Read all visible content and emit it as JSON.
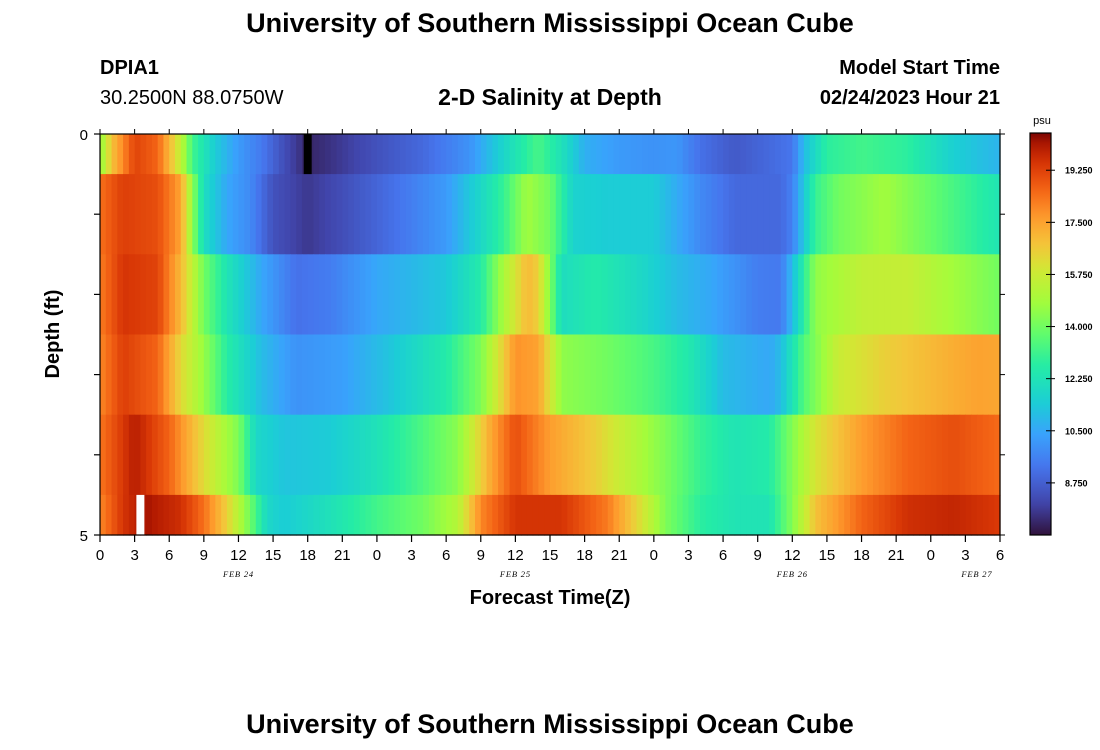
{
  "page": {
    "title": "University of Southern Mississippi Ocean Cube",
    "title_bottom": "University of Southern Mississippi Ocean Cube",
    "station": {
      "id": "DPIA1",
      "coords": "30.2500N  88.0750W"
    },
    "plot_title": "2-D Salinity at Depth",
    "model": {
      "label": "Model Start Time",
      "value": "02/24/2023 Hour 21"
    }
  },
  "chart_data": {
    "type": "heatmap",
    "title": "2-D Salinity at Depth",
    "xlabel": "Forecast Time(Z)",
    "ylabel": "Depth (ft)",
    "x_tick_labels": [
      "0",
      "3",
      "6",
      "9",
      "12",
      "15",
      "18",
      "21",
      "0",
      "3",
      "6",
      "9",
      "12",
      "15",
      "18",
      "21",
      "0",
      "3",
      "6",
      "9",
      "12",
      "15",
      "18",
      "21",
      "0",
      "3",
      "6"
    ],
    "x_range_hours": [
      0,
      78
    ],
    "day_labels": [
      {
        "label": "FEB 24",
        "hour": 12
      },
      {
        "label": "FEB 25",
        "hour": 36
      },
      {
        "label": "FEB 26",
        "hour": 60
      },
      {
        "label": "FEB 27",
        "hour": 76
      }
    ],
    "y_tick_labels": [
      "0",
      "5"
    ],
    "y_range_ft": [
      0,
      5
    ],
    "depth_layers": 5,
    "colorbar": {
      "unit": "psu",
      "range": [
        7.0,
        20.5
      ],
      "tick_values": [
        8.75,
        10.5,
        12.25,
        14.0,
        15.75,
        17.5,
        19.25
      ],
      "tick_labels": [
        "8.750",
        "10.500",
        "12.250",
        "14.000",
        "15.750",
        "17.500",
        "19.250"
      ]
    },
    "rows": [
      {
        "depth_range": [
          0,
          0.5
        ],
        "knots": [
          [
            0,
            14.5
          ],
          [
            1,
            16.8
          ],
          [
            3,
            19.2
          ],
          [
            5,
            18.6
          ],
          [
            7,
            15.5
          ],
          [
            8,
            13.2
          ],
          [
            10,
            11.4
          ],
          [
            12,
            10.2
          ],
          [
            14,
            9.4
          ],
          [
            16,
            8.3
          ],
          [
            18,
            7.4
          ],
          [
            20,
            7.7
          ],
          [
            24,
            8.4
          ],
          [
            28,
            9.0
          ],
          [
            32,
            10.0
          ],
          [
            36,
            12.3
          ],
          [
            38,
            13.3
          ],
          [
            40,
            12.2
          ],
          [
            42,
            10.7
          ],
          [
            45,
            10.2
          ],
          [
            48,
            10.0
          ],
          [
            50,
            10.1
          ],
          [
            52,
            9.2
          ],
          [
            55,
            8.6
          ],
          [
            58,
            9.0
          ],
          [
            60,
            9.3
          ],
          [
            61,
            11.0
          ],
          [
            63,
            12.8
          ],
          [
            66,
            13.2
          ],
          [
            70,
            12.8
          ],
          [
            74,
            11.5
          ],
          [
            78,
            10.8
          ]
        ]
      },
      {
        "depth_range": [
          0.5,
          1.5
        ],
        "knots": [
          [
            0,
            18.4
          ],
          [
            2,
            19.3
          ],
          [
            5,
            19.0
          ],
          [
            7,
            17.5
          ],
          [
            8,
            14.5
          ],
          [
            9,
            12.0
          ],
          [
            11,
            10.5
          ],
          [
            13,
            9.8
          ],
          [
            15,
            8.4
          ],
          [
            18,
            7.8
          ],
          [
            21,
            8.3
          ],
          [
            26,
            9.3
          ],
          [
            30,
            10.2
          ],
          [
            33,
            11.8
          ],
          [
            35,
            13.0
          ],
          [
            37,
            14.8
          ],
          [
            39,
            14.0
          ],
          [
            41,
            11.6
          ],
          [
            44,
            11.4
          ],
          [
            48,
            11.4
          ],
          [
            52,
            9.8
          ],
          [
            55,
            9.0
          ],
          [
            59,
            9.0
          ],
          [
            60,
            9.6
          ],
          [
            62,
            13.0
          ],
          [
            64,
            14.0
          ],
          [
            68,
            14.8
          ],
          [
            72,
            13.8
          ],
          [
            76,
            12.8
          ],
          [
            78,
            12.3
          ]
        ]
      },
      {
        "depth_range": [
          1.5,
          2.5
        ],
        "knots": [
          [
            0,
            18.2
          ],
          [
            2,
            19.5
          ],
          [
            5,
            19.2
          ],
          [
            7,
            17.0
          ],
          [
            9,
            14.0
          ],
          [
            11,
            12.3
          ],
          [
            14,
            10.5
          ],
          [
            17,
            9.2
          ],
          [
            20,
            9.5
          ],
          [
            24,
            10.5
          ],
          [
            30,
            11.3
          ],
          [
            33,
            12.6
          ],
          [
            35,
            15.0
          ],
          [
            37,
            17.0
          ],
          [
            38,
            16.5
          ],
          [
            40,
            12.0
          ],
          [
            43,
            12.6
          ],
          [
            47,
            11.8
          ],
          [
            50,
            11.0
          ],
          [
            53,
            10.5
          ],
          [
            57,
            9.5
          ],
          [
            59,
            9.4
          ],
          [
            60,
            11.0
          ],
          [
            62,
            14.5
          ],
          [
            66,
            15.5
          ],
          [
            70,
            15.6
          ],
          [
            74,
            14.8
          ],
          [
            78,
            14.0
          ]
        ]
      },
      {
        "depth_range": [
          2.5,
          3.5
        ],
        "knots": [
          [
            0,
            18.0
          ],
          [
            2,
            19.3
          ],
          [
            5,
            18.6
          ],
          [
            7,
            16.3
          ],
          [
            9,
            14.6
          ],
          [
            11,
            12.7
          ],
          [
            14,
            11.0
          ],
          [
            17,
            10.0
          ],
          [
            21,
            10.3
          ],
          [
            25,
            11.2
          ],
          [
            30,
            12.6
          ],
          [
            33,
            14.2
          ],
          [
            36,
            17.8
          ],
          [
            38,
            17.5
          ],
          [
            40,
            14.5
          ],
          [
            44,
            14.0
          ],
          [
            48,
            13.3
          ],
          [
            51,
            12.5
          ],
          [
            54,
            11.0
          ],
          [
            58,
            10.5
          ],
          [
            59,
            11.0
          ],
          [
            61,
            13.5
          ],
          [
            64,
            15.7
          ],
          [
            68,
            16.5
          ],
          [
            72,
            17.0
          ],
          [
            76,
            17.5
          ],
          [
            78,
            17.4
          ]
        ]
      },
      {
        "depth_range": [
          3.5,
          4.5
        ],
        "knots": [
          [
            0,
            18.3
          ],
          [
            3,
            20.0
          ],
          [
            6,
            18.6
          ],
          [
            8,
            17.0
          ],
          [
            10,
            15.5
          ],
          [
            12,
            14.2
          ],
          [
            13.5,
            11.8
          ],
          [
            16,
            11.2
          ],
          [
            20,
            11.4
          ],
          [
            24,
            12.2
          ],
          [
            28,
            13.4
          ],
          [
            31,
            14.4
          ],
          [
            34,
            17.5
          ],
          [
            36,
            19.0
          ],
          [
            39,
            17.6
          ],
          [
            43,
            16.5
          ],
          [
            46,
            15.3
          ],
          [
            49,
            14.2
          ],
          [
            52,
            13.0
          ],
          [
            55,
            12.3
          ],
          [
            58,
            12.6
          ],
          [
            60,
            14.3
          ],
          [
            62,
            16.0
          ],
          [
            66,
            17.6
          ],
          [
            70,
            18.6
          ],
          [
            74,
            19.0
          ],
          [
            78,
            18.5
          ]
        ]
      },
      {
        "depth_range": [
          4.5,
          5.0
        ],
        "knots": [
          [
            0,
            18.0
          ],
          [
            2,
            19.5
          ],
          [
            4,
            20.2
          ],
          [
            7,
            19.6
          ],
          [
            9,
            18.4
          ],
          [
            11,
            16.5
          ],
          [
            13,
            14.0
          ],
          [
            14.5,
            11.8
          ],
          [
            16,
            11.4
          ],
          [
            20,
            12.2
          ],
          [
            24,
            13.2
          ],
          [
            28,
            14.0
          ],
          [
            31,
            15.2
          ],
          [
            33,
            18.0
          ],
          [
            36,
            19.5
          ],
          [
            40,
            19.5
          ],
          [
            44,
            18.2
          ],
          [
            47,
            16.0
          ],
          [
            49,
            14.2
          ],
          [
            52,
            12.8
          ],
          [
            55,
            12.3
          ],
          [
            58,
            12.3
          ],
          [
            60,
            14.3
          ],
          [
            62,
            16.8
          ],
          [
            66,
            18.6
          ],
          [
            70,
            19.6
          ],
          [
            74,
            19.8
          ],
          [
            78,
            19.4
          ]
        ]
      }
    ],
    "markers": [
      {
        "hour": 18,
        "depth_range": [
          0,
          0.5
        ],
        "color": "#000000",
        "name": "black-marker"
      },
      {
        "hour": 3.5,
        "depth_range": [
          4.5,
          5.0
        ],
        "color": "#ffffff",
        "name": "white-marker"
      }
    ]
  }
}
